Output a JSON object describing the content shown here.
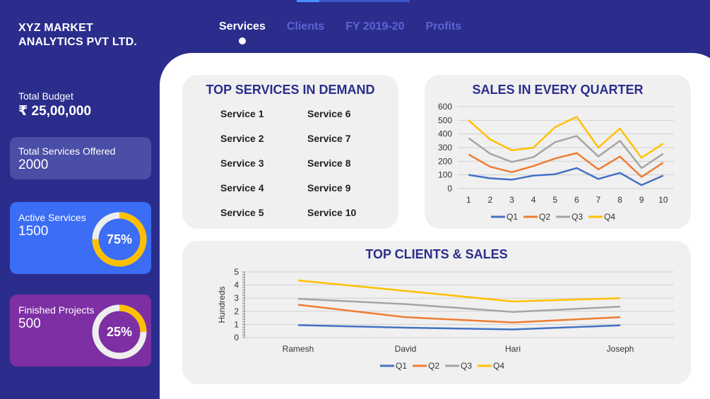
{
  "company": {
    "line1": "XYZ MARKET",
    "line2": "ANALYTICS PVT LTD."
  },
  "nav": [
    {
      "label": "Services",
      "active": true
    },
    {
      "label": "Clients",
      "active": false
    },
    {
      "label": "FY 2019-20",
      "active": false
    },
    {
      "label": "Profits",
      "active": false
    }
  ],
  "sidebar": {
    "budget_label": "Total Budget",
    "budget_value": "₹ 25,00,000",
    "total_label": "Total Services Offered",
    "total_value": "2000",
    "active_label": "Active Services",
    "active_value": "1500",
    "active_pct": "75%",
    "active_fraction": 0.75,
    "finished_label": "Finished Projects",
    "finished_value": "500",
    "finished_pct": "25%",
    "finished_fraction": 0.25
  },
  "services": {
    "title": "TOP SERVICES IN DEMAND",
    "items": [
      "Service 1",
      "Service 6",
      "Service 2",
      "Service 7",
      "Service 3",
      "Service 8",
      "Service 4",
      "Service 9",
      "Service 5",
      "Service 10"
    ]
  },
  "colors": {
    "q1": "#4472c4",
    "q2": "#ed7d31",
    "q3": "#a5a5a5",
    "q4": "#ffc000",
    "ring_track": "#eeeeee",
    "ring_fill": "#ffc000"
  },
  "chart_data": [
    {
      "type": "line",
      "title": "SALES IN EVERY QUARTER",
      "x": [
        1,
        2,
        3,
        4,
        5,
        6,
        7,
        8,
        9,
        10
      ],
      "ylim": [
        0,
        600
      ],
      "yticks": [
        0,
        100,
        200,
        300,
        400,
        500,
        600
      ],
      "grid": true,
      "legend": "bottom",
      "series": [
        {
          "name": "Q1",
          "values": [
            100,
            75,
            65,
            95,
            105,
            150,
            70,
            115,
            25,
            95
          ]
        },
        {
          "name": "Q2",
          "values": [
            250,
            160,
            120,
            165,
            220,
            260,
            140,
            235,
            85,
            190
          ]
        },
        {
          "name": "Q3",
          "values": [
            370,
            255,
            195,
            230,
            340,
            385,
            235,
            350,
            150,
            255
          ]
        },
        {
          "name": "Q4",
          "values": [
            500,
            360,
            280,
            300,
            450,
            525,
            300,
            440,
            225,
            330
          ]
        }
      ]
    },
    {
      "type": "line",
      "title": "TOP CLIENTS & SALES",
      "categories": [
        "Ramesh",
        "David",
        "Hari",
        "Joseph"
      ],
      "ylabel": "Hundreds",
      "ylim": [
        0,
        5
      ],
      "yticks": [
        0,
        1,
        2,
        3,
        4,
        5
      ],
      "grid": true,
      "legend": "bottom",
      "series": [
        {
          "name": "Q1",
          "values": [
            0.95,
            0.75,
            0.62,
            0.93
          ]
        },
        {
          "name": "Q2",
          "values": [
            2.5,
            1.55,
            1.15,
            1.55
          ]
        },
        {
          "name": "Q3",
          "values": [
            2.95,
            2.55,
            1.95,
            2.35
          ]
        },
        {
          "name": "Q4",
          "values": [
            4.35,
            3.55,
            2.75,
            3.0
          ]
        }
      ]
    }
  ]
}
